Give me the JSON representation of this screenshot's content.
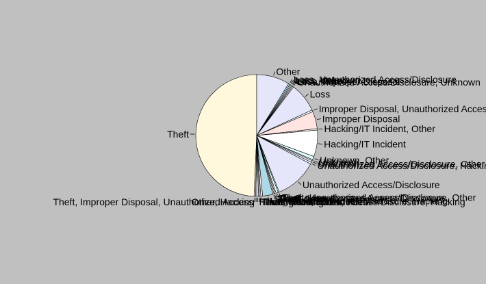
{
  "chart_data": {
    "type": "pie",
    "title": "",
    "slices": [
      {
        "label": "Theft",
        "value": 50.6,
        "color": "#fff8dc"
      },
      {
        "label": "Other",
        "value": 9.0,
        "color": "#e6e6fa"
      },
      {
        "label": "Loss, Unauthorized Access/Disclosure",
        "value": 0.4,
        "color": "#add8e6"
      },
      {
        "label": "Loss, Unknown",
        "value": 0.3,
        "color": "#e0ffff"
      },
      {
        "label": "Loss, Other",
        "value": 0.3,
        "color": "#fff0f5"
      },
      {
        "label": "Loss, Improper Disposal",
        "value": 0.3,
        "color": "#e6e6fa"
      },
      {
        "label": "Unauthorized Access/Disclosure, Unknown",
        "value": 0.3,
        "color": "#ffffff"
      },
      {
        "label": "Loss",
        "value": 8.0,
        "color": "#e6e6fa"
      },
      {
        "label": "Improper Disposal, Unauthorized Access/Disclosure",
        "value": 0.5,
        "color": "#f0f8ff"
      },
      {
        "label": "Improper Disposal",
        "value": 4.7,
        "color": "#ffe4e1"
      },
      {
        "label": "Hacking/IT Incident, Other",
        "value": 0.4,
        "color": "#ffffff"
      },
      {
        "label": "Hacking/IT Incident",
        "value": 7.2,
        "color": "#ffffff"
      },
      {
        "label": "Unknown, Other",
        "value": 0.9,
        "color": "#e0ffff"
      },
      {
        "label": "Unknown",
        "value": 0.3,
        "color": "#ffffff"
      },
      {
        "label": "Unauthorized Access/Disclosure, Other",
        "value": 0.5,
        "color": "#e6e6fa"
      },
      {
        "label": "Unauthorized Access/Disclosure, Hacking/IT Incident",
        "value": 0.5,
        "color": "#f0f8ff"
      },
      {
        "label": "Unauthorized Access/Disclosure",
        "value": 11.5,
        "color": "#e6e6fa"
      },
      {
        "label": "Theft, Unauthorized Access/Disclosure, Other",
        "value": 0.3,
        "color": "#f0ffff"
      },
      {
        "label": "Theft, Unauthorized Access/Disclosure",
        "value": 0.6,
        "color": "#e0ffff"
      },
      {
        "label": "Theft, Loss",
        "value": 0.3,
        "color": "#ffffff"
      },
      {
        "label": "Theft, Improper Disposal",
        "value": 0.3,
        "color": "#ffe4e1"
      },
      {
        "label": "Theft, Other",
        "value": 0.3,
        "color": "#f5f5f5"
      },
      {
        "label": "Unauthorized Access/Disclosure, Hacking",
        "value": 2.8,
        "color": "#add8e6"
      },
      {
        "label": "Theft, Loss, Other",
        "value": 0.5,
        "color": "#fff0f5"
      },
      {
        "label": "Theft, Hacking/IT Incident",
        "value": 0.3,
        "color": "#ffffff"
      },
      {
        "label": "Theft, Unauthorized Access/Disclosure, Hacking",
        "value": 0.3,
        "color": "#fffaf0"
      },
      {
        "label": "Hacking/IT Incident, Theft",
        "value": 0.5,
        "color": "#e6e6fa"
      },
      {
        "label": "Other, Hacking",
        "value": 0.3,
        "color": "#f0f8ff"
      },
      {
        "label": "Theft, Improper Disposal, Unauthorized Access",
        "value": 0.4,
        "color": "#ffe4e1"
      }
    ]
  }
}
